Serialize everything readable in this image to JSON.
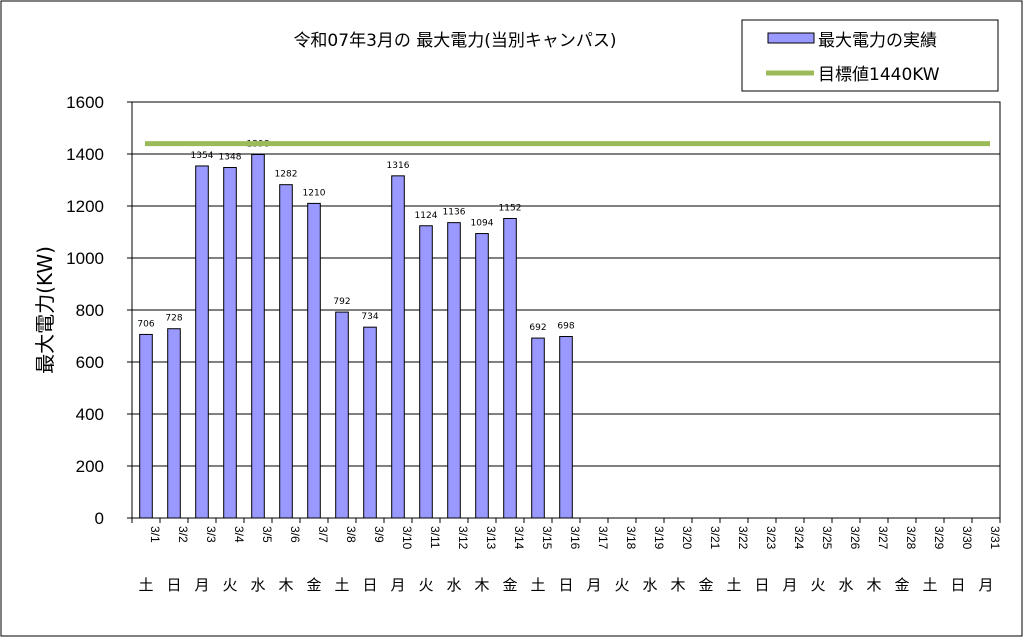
{
  "chart_data": {
    "type": "bar",
    "title": "令和07年3月の 最大電力(当別キャンパス)",
    "ylabel": "最大電力(KW)",
    "ylim": [
      0,
      1600
    ],
    "yticks": [
      "0",
      "200",
      "400",
      "600",
      "800",
      "1000",
      "1200",
      "1400",
      "1600"
    ],
    "grid": true,
    "legend_position": "top-right",
    "categories": [
      "3/1",
      "3/2",
      "3/3",
      "3/4",
      "3/5",
      "3/6",
      "3/7",
      "3/8",
      "3/9",
      "3/10",
      "3/11",
      "3/12",
      "3/13",
      "3/14",
      "3/15",
      "3/16",
      "3/17",
      "3/18",
      "3/19",
      "3/20",
      "3/21",
      "3/22",
      "3/23",
      "3/24",
      "3/25",
      "3/26",
      "3/27",
      "3/28",
      "3/29",
      "3/30",
      "3/31"
    ],
    "weekdays": [
      "土",
      "日",
      "月",
      "火",
      "水",
      "木",
      "金",
      "土",
      "日",
      "月",
      "火",
      "水",
      "木",
      "金",
      "土",
      "日",
      "月",
      "火",
      "水",
      "木",
      "金",
      "土",
      "日",
      "月",
      "火",
      "水",
      "木",
      "金",
      "土",
      "日",
      "月"
    ],
    "series": [
      {
        "name": "最大電力の実績",
        "color": "#9999ff",
        "values": [
          706,
          728,
          1354,
          1348,
          1398,
          1282,
          1210,
          792,
          734,
          1316,
          1124,
          1136,
          1094,
          1152,
          692,
          698,
          null,
          null,
          null,
          null,
          null,
          null,
          null,
          null,
          null,
          null,
          null,
          null,
          null,
          null,
          null
        ]
      }
    ],
    "target_line": {
      "name": "目標値1440KW",
      "value": 1440,
      "color": "#9bbb59"
    }
  }
}
